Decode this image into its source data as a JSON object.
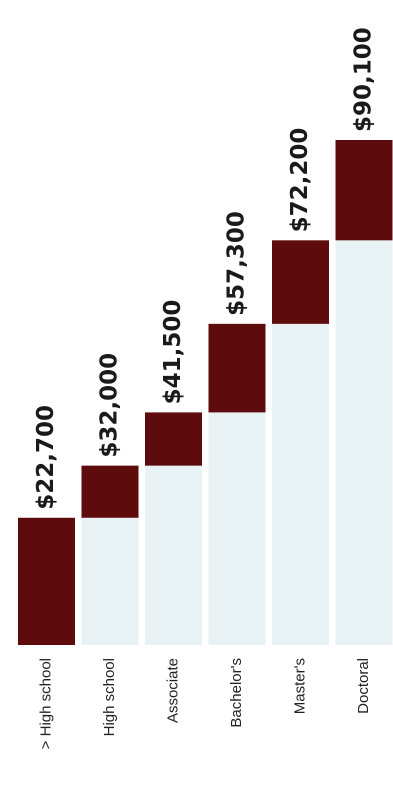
{
  "chart_data": {
    "type": "bar",
    "orientation": "vertical-stacked-increment",
    "categories": [
      "> High school",
      "High school",
      "Associate",
      "Bachelor's",
      "Master's",
      "Doctoral"
    ],
    "values": [
      22700,
      32000,
      41500,
      57300,
      72200,
      90100
    ],
    "value_labels": [
      "$22,700",
      "$32,000",
      "$41,500",
      "$57,300",
      "$72,200",
      "$90,100"
    ],
    "title": "",
    "xlabel": "",
    "ylabel": "",
    "ylim": [
      0,
      90100
    ],
    "grid": false,
    "legend": "none",
    "colors": {
      "increment": "#5e0b0d",
      "base": "#e8f1f3",
      "text": "#1a1a1a"
    }
  }
}
